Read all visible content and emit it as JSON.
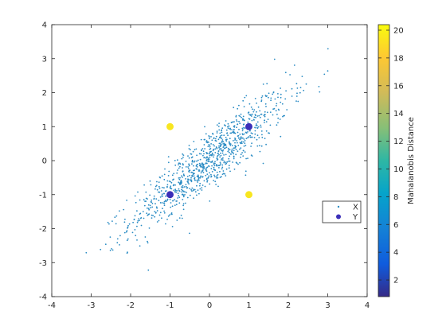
{
  "chart_data": {
    "type": "scatter",
    "xlim": [
      -4,
      4
    ],
    "ylim": [
      -4,
      4
    ],
    "xticks": [
      -4,
      -3,
      -2,
      -1,
      0,
      1,
      2,
      3,
      4
    ],
    "yticks": [
      -4,
      -3,
      -2,
      -1,
      0,
      1,
      2,
      3,
      4
    ],
    "grid": false,
    "series": [
      {
        "name": "X",
        "marker": "dot",
        "color": "#2b8cc4",
        "distribution": "bivariate normal, mean [0, 0], std [1, 1], correlation 0.9",
        "count": 1000
      },
      {
        "name": "Y",
        "marker": "filled-circle",
        "points": [
          [
            1,
            1
          ],
          [
            -1,
            -1
          ],
          [
            -1,
            1
          ],
          [
            1,
            -1
          ]
        ],
        "mahalanobis_distance": [
          1.05,
          1.05,
          20.2,
          20.2
        ],
        "point_colors": [
          "#3b2fb8",
          "#3b2fb8",
          "#f8e620",
          "#f8e620"
        ]
      }
    ],
    "legend": {
      "entries": [
        "X",
        "Y"
      ],
      "position": "east"
    },
    "colorbar": {
      "label": "Mahalanobis Distance",
      "range": [
        0.8,
        20.4
      ],
      "ticks": [
        2,
        4,
        6,
        8,
        10,
        12,
        14,
        16,
        18,
        20
      ],
      "colormap": "parula"
    }
  }
}
